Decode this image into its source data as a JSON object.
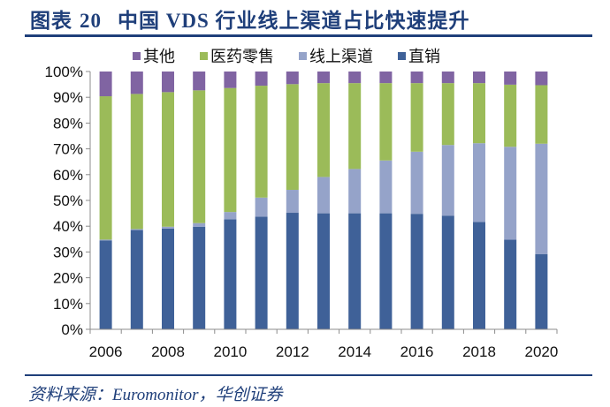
{
  "header": {
    "figure_label": "图表",
    "figure_number": "20",
    "title": "中国 VDS 行业线上渠道占比快速提升"
  },
  "legend": [
    {
      "label": "其他",
      "color": "#8064a2"
    },
    {
      "label": "医药零售",
      "color": "#9bbb59"
    },
    {
      "label": "线上渠道",
      "color": "#95a3c9"
    },
    {
      "label": "直销",
      "color": "#3f6198"
    }
  ],
  "source": "资料来源：Euromonitor，华创证券",
  "chart_data": {
    "type": "bar",
    "stacked": true,
    "title": "中国 VDS 行业线上渠道占比快速提升",
    "xlabel": "",
    "ylabel": "",
    "ylim": [
      0,
      100
    ],
    "y_ticks": [
      "0%",
      "10%",
      "20%",
      "30%",
      "40%",
      "50%",
      "60%",
      "70%",
      "80%",
      "90%",
      "100%"
    ],
    "x_tick_labels": [
      "2006",
      "2008",
      "2010",
      "2012",
      "2014",
      "2016",
      "2018",
      "2020"
    ],
    "categories": [
      "2006",
      "2007",
      "2008",
      "2009",
      "2010",
      "2011",
      "2012",
      "2013",
      "2014",
      "2015",
      "2016",
      "2017",
      "2018",
      "2019",
      "2020"
    ],
    "legend_position": "top",
    "grid": false,
    "series": [
      {
        "name": "直销",
        "color": "#3f6198",
        "values": [
          34.5,
          38.5,
          39.1,
          39.8,
          42.7,
          43.7,
          45.2,
          45.0,
          45.0,
          45.0,
          44.8,
          44.1,
          41.6,
          34.8,
          29.2
        ]
      },
      {
        "name": "线上渠道",
        "color": "#95a3c9",
        "values": [
          0.3,
          0.4,
          0.7,
          1.4,
          2.8,
          7.4,
          8.9,
          14.1,
          17.2,
          20.5,
          24.1,
          27.4,
          30.6,
          36.0,
          42.8
        ]
      },
      {
        "name": "医药零售",
        "color": "#9bbb59",
        "values": [
          55.6,
          52.4,
          52.2,
          51.5,
          48.1,
          43.4,
          41.0,
          36.4,
          33.3,
          30.0,
          26.6,
          24.0,
          23.3,
          24.1,
          22.7
        ]
      },
      {
        "name": "其他",
        "color": "#8064a2",
        "values": [
          9.6,
          8.7,
          8.0,
          7.3,
          6.4,
          5.5,
          4.9,
          4.5,
          4.5,
          4.5,
          4.5,
          4.5,
          4.5,
          5.1,
          5.3
        ]
      }
    ]
  }
}
